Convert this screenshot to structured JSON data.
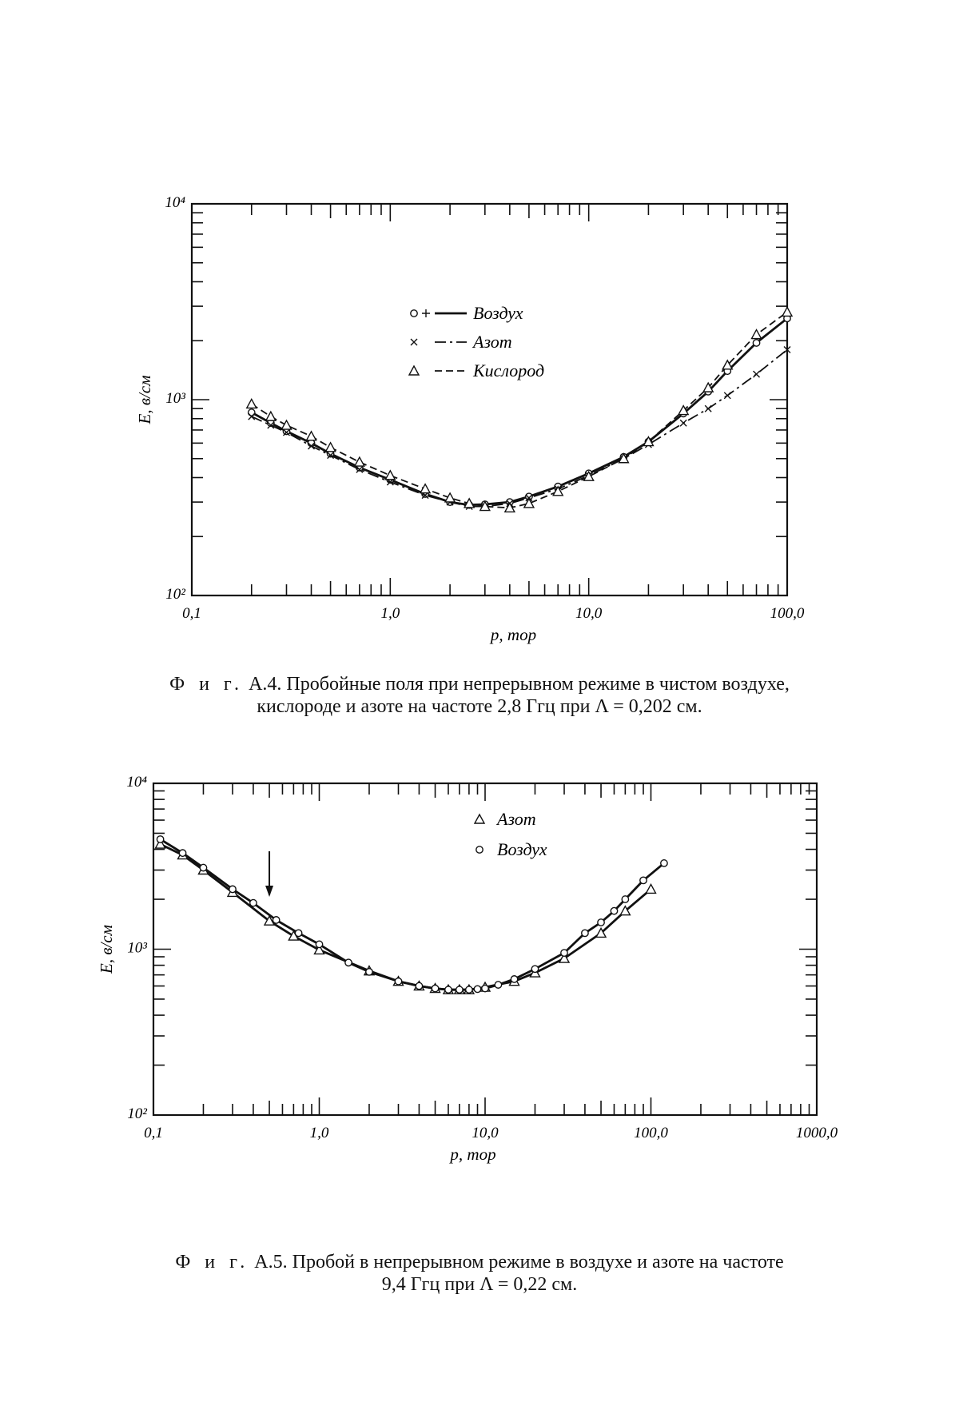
{
  "figures": [
    {
      "caption": {
        "prefix": "Ф и г.",
        "number": "А.4.",
        "line1": "Пробойные поля при непрерывном режиме в чистом воздухе,",
        "line2": "кислороде и азоте на частоте 2,8 Ггц при Λ = 0,202 см."
      }
    },
    {
      "caption": {
        "prefix": "Ф и г.",
        "number": "А.5.",
        "line1": "Пробой в непрерывном режиме в воздухе и азоте на частоте",
        "line2": "9,4 Ггц при Λ = 0,22 см."
      }
    }
  ],
  "chart_data": [
    {
      "type": "line",
      "xlabel": "p, тор",
      "ylabel": "E, в/см",
      "xscale": "log",
      "yscale": "log",
      "xlim": [
        0.1,
        100
      ],
      "ylim": [
        100,
        10000
      ],
      "xtick_labels": [
        "0,1",
        "1,0",
        "10,0",
        "100,0"
      ],
      "ytick_labels": [
        "10²",
        "10³",
        "10⁴"
      ],
      "grid": false,
      "legend_position": "top-center",
      "series": [
        {
          "name": "Воздух",
          "legend_symbol": "o+",
          "line_style": "solid",
          "x": [
            0.2,
            0.25,
            0.3,
            0.4,
            0.5,
            0.7,
            1.0,
            1.5,
            2.0,
            2.5,
            3.0,
            4.0,
            5.0,
            7.0,
            10.0,
            15.0,
            20.0,
            30.0,
            40.0,
            50.0,
            70.0,
            100.0
          ],
          "y": [
            860,
            760,
            690,
            600,
            530,
            450,
            390,
            330,
            300,
            290,
            292,
            300,
            320,
            360,
            420,
            510,
            610,
            850,
            1100,
            1400,
            1950,
            2600
          ]
        },
        {
          "name": "Азот",
          "legend_symbol": "x",
          "line_style": "dash-dot",
          "x": [
            0.2,
            0.25,
            0.3,
            0.4,
            0.5,
            0.7,
            1.0,
            1.5,
            2.0,
            2.5,
            3.0,
            4.0,
            5.0,
            7.0,
            10.0,
            15.0,
            20.0,
            30.0,
            40.0,
            50.0,
            70.0,
            100.0
          ],
          "y": [
            820,
            740,
            680,
            580,
            520,
            440,
            380,
            325,
            300,
            285,
            285,
            295,
            315,
            350,
            410,
            500,
            590,
            760,
            900,
            1050,
            1350,
            1800
          ]
        },
        {
          "name": "Кислород",
          "legend_symbol": "Δ",
          "line_style": "dashed",
          "x": [
            0.2,
            0.25,
            0.3,
            0.4,
            0.5,
            0.7,
            1.0,
            1.5,
            2.0,
            2.5,
            3.0,
            4.0,
            5.0,
            7.0,
            10.0,
            15.0,
            20.0,
            30.0,
            40.0,
            50.0,
            70.0,
            100.0
          ],
          "y": [
            950,
            820,
            740,
            650,
            570,
            480,
            410,
            350,
            315,
            295,
            285,
            280,
            295,
            340,
            405,
            500,
            610,
            880,
            1150,
            1500,
            2150,
            2800
          ]
        }
      ]
    },
    {
      "type": "line",
      "xlabel": "p, тор",
      "ylabel": "E, в/см",
      "xscale": "log",
      "yscale": "log",
      "xlim": [
        0.1,
        1000
      ],
      "ylim": [
        100,
        10000
      ],
      "xtick_labels": [
        "0,1",
        "1,0",
        "10,0",
        "100,0",
        "1000,0"
      ],
      "ytick_labels": [
        "10²",
        "10³",
        "10⁴"
      ],
      "grid": false,
      "legend_position": "top-right",
      "annotation": "arrow-at-p-0.5",
      "series": [
        {
          "name": "Азот",
          "legend_symbol": "Δ",
          "line_style": "solid",
          "x": [
            0.11,
            0.15,
            0.2,
            0.3,
            0.5,
            0.7,
            1.0,
            2.0,
            3.0,
            4.0,
            5.0,
            6.0,
            7.0,
            8.0,
            10.0,
            15.0,
            20.0,
            30.0,
            50.0,
            70.0,
            100.0
          ],
          "y": [
            4300,
            3700,
            3000,
            2200,
            1480,
            1200,
            990,
            740,
            640,
            600,
            580,
            570,
            570,
            570,
            590,
            640,
            720,
            880,
            1250,
            1700,
            2300
          ]
        },
        {
          "name": "Воздух",
          "legend_symbol": "o",
          "line_style": "solid",
          "x": [
            0.11,
            0.15,
            0.2,
            0.3,
            0.4,
            0.55,
            0.75,
            1.0,
            1.5,
            2.0,
            3.0,
            4.0,
            5.0,
            6.0,
            7.0,
            8.0,
            9.0,
            10.0,
            12.0,
            15.0,
            20.0,
            30.0,
            40.0,
            50.0,
            60.0,
            70.0,
            90.0,
            120.0
          ],
          "y": [
            4600,
            3800,
            3100,
            2300,
            1900,
            1500,
            1250,
            1070,
            830,
            730,
            640,
            600,
            580,
            570,
            570,
            570,
            575,
            580,
            610,
            660,
            760,
            950,
            1250,
            1450,
            1700,
            2000,
            2600,
            3300
          ]
        }
      ]
    }
  ]
}
